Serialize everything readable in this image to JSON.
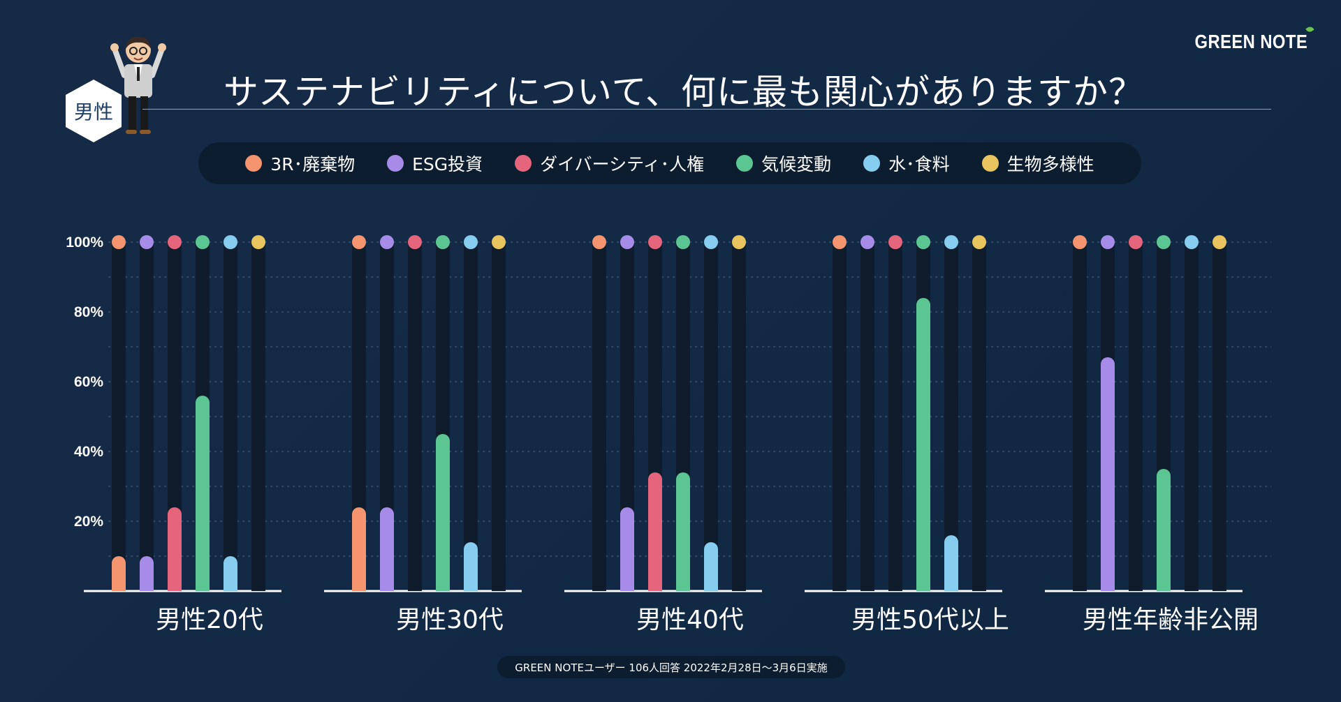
{
  "brand": {
    "name": "GREEN NOTE"
  },
  "badge": {
    "label": "男性"
  },
  "title": "サステナビリティについて、何に最も関心がありますか？",
  "footer": "GREEN NOTEユーザー 106人回答 2022年2月28日〜3月6日実施",
  "chart_data": {
    "type": "bar",
    "title": "サステナビリティについて、何に最も関心がありますか？",
    "xlabel": "",
    "ylabel": "",
    "ylim": [
      0,
      100
    ],
    "y_ticks": [
      "20%",
      "40%",
      "60%",
      "80%",
      "100%"
    ],
    "y_tick_values": [
      20,
      40,
      60,
      80,
      100
    ],
    "grid": true,
    "legend_placement": "top",
    "categories": [
      "男性20代",
      "男性30代",
      "男性40代",
      "男性50代以上",
      "男性年齢非公開"
    ],
    "series": [
      {
        "name": "3R･廃棄物",
        "color": "#f4956f",
        "values": [
          10,
          24,
          0,
          0,
          0
        ]
      },
      {
        "name": "ESG投資",
        "color": "#a78be8",
        "values": [
          10,
          24,
          24,
          0,
          67
        ]
      },
      {
        "name": "ダイバーシティ･人権",
        "color": "#e5667c",
        "values": [
          24,
          0,
          34,
          0,
          0
        ]
      },
      {
        "name": "気候変動",
        "color": "#5cc693",
        "values": [
          56,
          45,
          34,
          84,
          35
        ]
      },
      {
        "name": "水･食料",
        "color": "#86cdf0",
        "values": [
          10,
          14,
          14,
          16,
          0
        ]
      },
      {
        "name": "生物多様性",
        "color": "#e9c560",
        "values": [
          0,
          0,
          0,
          0,
          0
        ]
      }
    ]
  }
}
